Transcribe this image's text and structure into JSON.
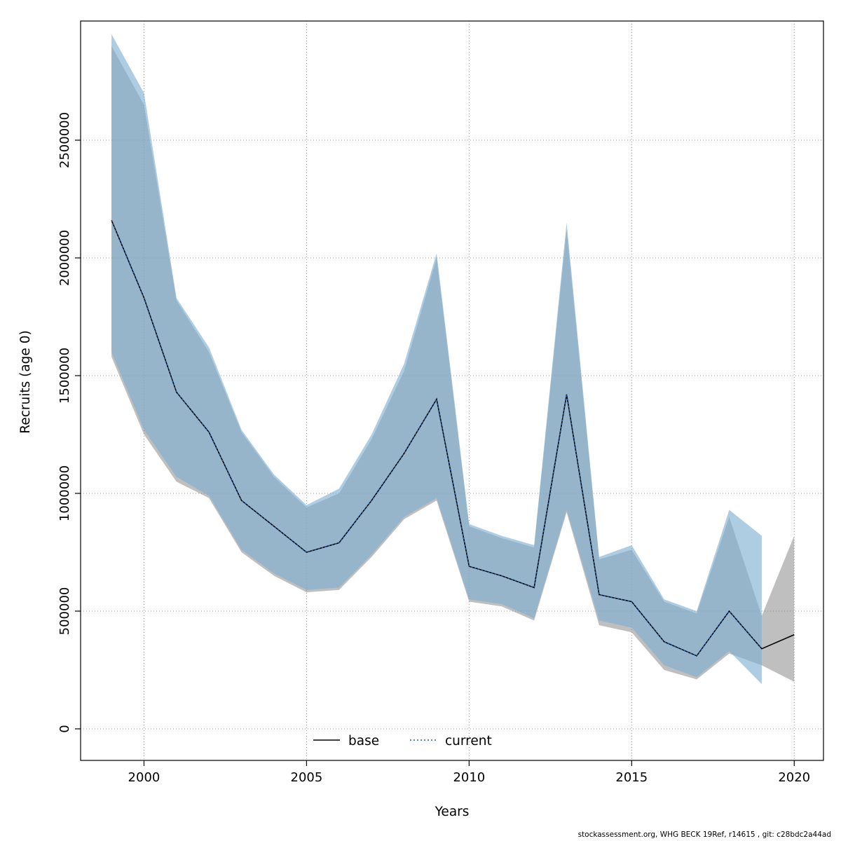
{
  "figure": {
    "x_axis_title": "Years",
    "y_axis_title": "Recruits (age 0)",
    "footer": "stockassessment.org, WHG  BECK  19Ref, r14615 , git: c28bdc2a44ad"
  },
  "legend": {
    "position": "bottom-center-inside",
    "items": [
      {
        "label": "base",
        "line_style": "solid",
        "color": "#000000"
      },
      {
        "label": "current",
        "line_style": "dotted",
        "color": "#1f5fa8"
      }
    ]
  },
  "chart_data": {
    "type": "line",
    "title": "",
    "xlabel": "Years",
    "ylabel": "Recruits (age 0)",
    "grid": true,
    "grid_color": "#999999",
    "xlim": [
      1998.05,
      2020.9
    ],
    "ylim": [
      -134000,
      3006000
    ],
    "x_ticks": [
      2000,
      2005,
      2010,
      2015,
      2020
    ],
    "x_tick_labels": [
      "2000",
      "2005",
      "2010",
      "2015",
      "2020"
    ],
    "y_ticks": [
      0,
      500000,
      1000000,
      1500000,
      2000000,
      2500000
    ],
    "y_tick_labels": [
      "0",
      "500000",
      "1000000",
      "1500000",
      "2000000",
      "2500000"
    ],
    "legend_position": "bottom-center",
    "series": [
      {
        "name": "base",
        "color": "#000000",
        "line_style": "solid",
        "band_color": "rgba(128,128,128,0.50)",
        "x": [
          1999,
          2000,
          2001,
          2002,
          2003,
          2004,
          2005,
          2006,
          2007,
          2008,
          2009,
          2010,
          2011,
          2012,
          2013,
          2014,
          2015,
          2016,
          2017,
          2018,
          2019,
          2020
        ],
        "values": [
          2160000,
          1830000,
          1430000,
          1260000,
          970000,
          860000,
          750000,
          790000,
          970000,
          1170000,
          1400000,
          690000,
          650000,
          600000,
          1420000,
          570000,
          540000,
          370000,
          310000,
          500000,
          340000,
          400000
        ],
        "lower": [
          1580000,
          1250000,
          1050000,
          980000,
          750000,
          650000,
          580000,
          590000,
          730000,
          890000,
          970000,
          540000,
          520000,
          460000,
          920000,
          440000,
          410000,
          250000,
          210000,
          320000,
          270000,
          200000
        ],
        "upper": [
          2900000,
          2650000,
          1820000,
          1600000,
          1260000,
          1070000,
          940000,
          1000000,
          1230000,
          1520000,
          2000000,
          860000,
          810000,
          770000,
          2120000,
          720000,
          760000,
          540000,
          490000,
          900000,
          480000,
          820000
        ]
      },
      {
        "name": "current",
        "color": "#1f5fa8",
        "line_style": "dotted",
        "band_color": "rgba(125,175,210,0.62)",
        "x": [
          1999,
          2000,
          2001,
          2002,
          2003,
          2004,
          2005,
          2006,
          2007,
          2008,
          2009,
          2010,
          2011,
          2012,
          2013,
          2014,
          2015,
          2016,
          2017,
          2018,
          2019
        ],
        "values": [
          2160000,
          1830000,
          1430000,
          1260000,
          970000,
          860000,
          750000,
          790000,
          970000,
          1170000,
          1400000,
          690000,
          650000,
          600000,
          1420000,
          570000,
          540000,
          370000,
          310000,
          500000,
          340000
        ],
        "lower": [
          1600000,
          1270000,
          1070000,
          990000,
          760000,
          660000,
          590000,
          600000,
          740000,
          900000,
          980000,
          550000,
          530000,
          470000,
          930000,
          460000,
          430000,
          270000,
          220000,
          330000,
          190000
        ],
        "upper": [
          2950000,
          2700000,
          1830000,
          1620000,
          1270000,
          1080000,
          950000,
          1020000,
          1250000,
          1550000,
          2020000,
          870000,
          820000,
          780000,
          2150000,
          730000,
          780000,
          550000,
          500000,
          930000,
          820000
        ]
      }
    ]
  }
}
